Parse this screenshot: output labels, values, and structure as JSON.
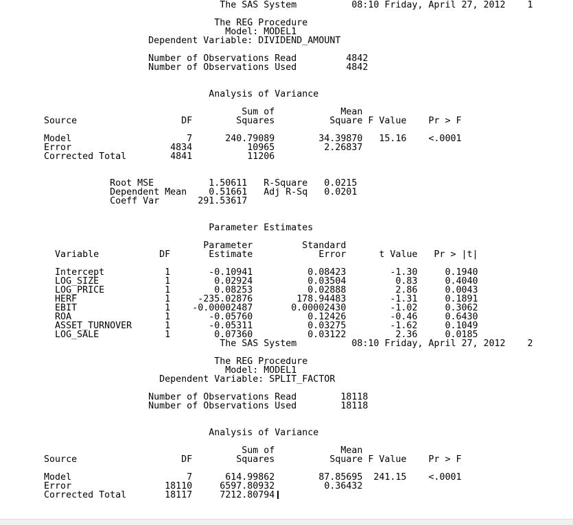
{
  "window": {
    "background_color": "#ffffff",
    "text_color": "#000000",
    "scrollbar_track_color": "#f0f0f0",
    "caret": {
      "visible": true,
      "after_text": "7212.80794"
    }
  },
  "pages": [
    {
      "header": {
        "title": "The SAS System",
        "datetime": "08:10 Friday, April 27, 2012",
        "page_number": "1"
      },
      "procedure": {
        "title": "The REG Procedure",
        "model": "Model: MODEL1",
        "dependent": "Dependent Variable: DIVIDEND_AMOUNT"
      },
      "observations": [
        [
          "Number of Observations Read",
          "4842"
        ],
        [
          "Number of Observations Used",
          "4842"
        ]
      ],
      "anova": {
        "title": "Analysis of Variance",
        "header_line1": [
          "Sum of",
          "Mean"
        ],
        "header_line2": [
          "Source",
          "DF",
          "Squares",
          "Square",
          "F Value",
          "Pr > F"
        ],
        "rows": [
          [
            "Model",
            "7",
            "240.79089",
            "34.39870",
            "15.16",
            "<.0001"
          ],
          [
            "Error",
            "4834",
            "10965",
            "2.26837",
            "",
            ""
          ],
          [
            "Corrected Total",
            "4841",
            "11206",
            "",
            "",
            ""
          ]
        ]
      },
      "fit_statistics": [
        [
          "Root MSE",
          "1.50611",
          "R-Square",
          "0.0215"
        ],
        [
          "Dependent Mean",
          "0.51661",
          "Adj R-Sq",
          "0.0201"
        ],
        [
          "Coeff Var",
          "291.53617",
          "",
          ""
        ]
      ],
      "parameter_estimates": {
        "title": "Parameter Estimates",
        "header_line1": [
          "Parameter",
          "Standard"
        ],
        "header_line2": [
          "Variable",
          "DF",
          "Estimate",
          "Error",
          "t Value",
          "Pr > |t|"
        ],
        "rows": [
          [
            "Intercept",
            "1",
            "-0.10941",
            "0.08423",
            "-1.30",
            "0.1940"
          ],
          [
            "LOG_SIZE",
            "1",
            "0.02924",
            "0.03504",
            "0.83",
            "0.4040"
          ],
          [
            "LOG_PRICE",
            "1",
            "0.08253",
            "0.02888",
            "2.86",
            "0.0043"
          ],
          [
            "HERF",
            "1",
            "-235.02876",
            "178.94483",
            "-1.31",
            "0.1891"
          ],
          [
            "EBIT",
            "1",
            "-0.00002487",
            "0.00002430",
            "-1.02",
            "0.3062"
          ],
          [
            "ROA",
            "1",
            "-0.05760",
            "0.12426",
            "-0.46",
            "0.6430"
          ],
          [
            "ASSET_TURNOVER",
            "1",
            "-0.05311",
            "0.03275",
            "-1.62",
            "0.1049"
          ],
          [
            "LOG_SALE",
            "1",
            "0.07360",
            "0.03122",
            "2.36",
            "0.0185"
          ]
        ]
      }
    },
    {
      "header": {
        "title": "The SAS System",
        "datetime": "08:10 Friday, April 27, 2012",
        "page_number": "2"
      },
      "procedure": {
        "title": "The REG Procedure",
        "model": "Model: MODEL1",
        "dependent": "Dependent Variable: SPLIT_FACTOR"
      },
      "observations": [
        [
          "Number of Observations Read",
          "18118"
        ],
        [
          "Number of Observations Used",
          "18118"
        ]
      ],
      "anova": {
        "title": "Analysis of Variance",
        "header_line1": [
          "Sum of",
          "Mean"
        ],
        "header_line2": [
          "Source",
          "DF",
          "Squares",
          "Square",
          "F Value",
          "Pr > F"
        ],
        "rows": [
          [
            "Model",
            "7",
            "614.99862",
            "87.85695",
            "241.15",
            "<.0001"
          ],
          [
            "Error",
            "18110",
            "6597.80932",
            "0.36432",
            "",
            ""
          ],
          [
            "Corrected Total",
            "18117",
            "7212.80794",
            "",
            "",
            ""
          ]
        ]
      }
    }
  ]
}
